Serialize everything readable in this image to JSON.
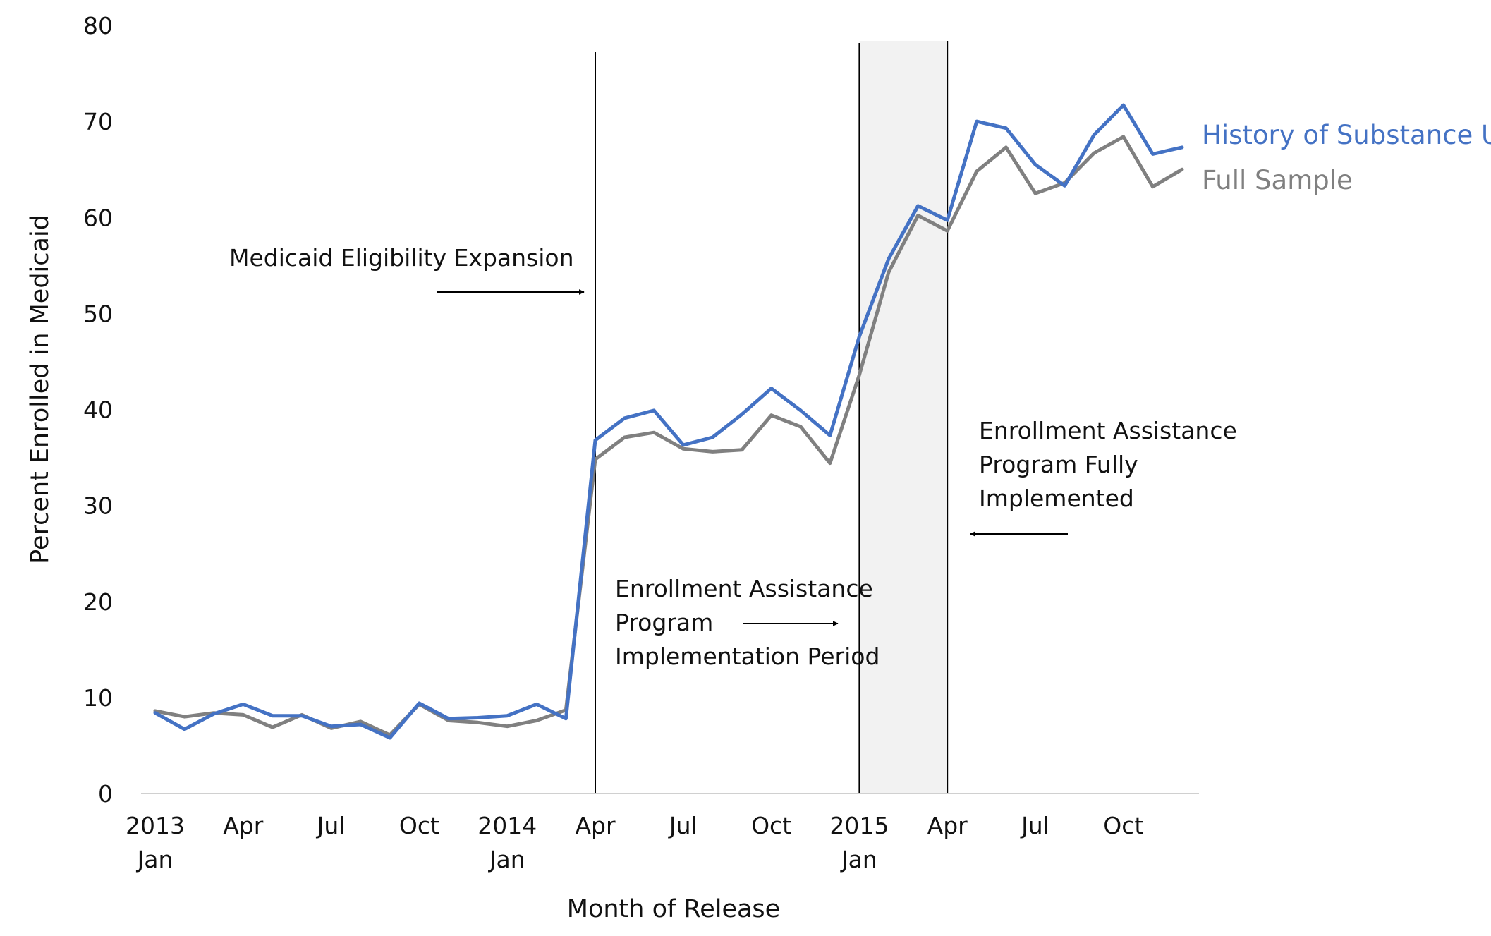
{
  "chart_data": {
    "type": "line",
    "xlabel": "Month of Release",
    "ylabel": "Percent Enrolled in Medicaid",
    "ylim": [
      0,
      80
    ],
    "yticks": [
      0,
      10,
      20,
      30,
      40,
      50,
      60,
      70,
      80
    ],
    "grid": false,
    "legend_placement": "right, at line ends",
    "x": [
      "2013-01",
      "2013-02",
      "2013-03",
      "2013-04",
      "2013-05",
      "2013-06",
      "2013-07",
      "2013-08",
      "2013-09",
      "2013-10",
      "2013-11",
      "2013-12",
      "2014-01",
      "2014-02",
      "2014-03",
      "2014-04",
      "2014-05",
      "2014-06",
      "2014-07",
      "2014-08",
      "2014-09",
      "2014-10",
      "2014-11",
      "2014-12",
      "2015-01",
      "2015-02",
      "2015-03",
      "2015-04",
      "2015-05",
      "2015-06",
      "2015-07",
      "2015-08",
      "2015-09",
      "2015-10",
      "2015-11",
      "2015-12"
    ],
    "xtick_labels": [
      {
        "month": "2013-01",
        "line1": "2013",
        "line2": "Jan"
      },
      {
        "month": "2013-04",
        "line1": "Apr",
        "line2": ""
      },
      {
        "month": "2013-07",
        "line1": "Jul",
        "line2": ""
      },
      {
        "month": "2013-10",
        "line1": "Oct",
        "line2": ""
      },
      {
        "month": "2014-01",
        "line1": "2014",
        "line2": "Jan"
      },
      {
        "month": "2014-04",
        "line1": "Apr",
        "line2": ""
      },
      {
        "month": "2014-07",
        "line1": "Jul",
        "line2": ""
      },
      {
        "month": "2014-10",
        "line1": "Oct",
        "line2": ""
      },
      {
        "month": "2015-01",
        "line1": "2015",
        "line2": "Jan"
      },
      {
        "month": "2015-04",
        "line1": "Apr",
        "line2": ""
      },
      {
        "month": "2015-07",
        "line1": "Jul",
        "line2": ""
      },
      {
        "month": "2015-10",
        "line1": "Oct",
        "line2": ""
      }
    ],
    "series": [
      {
        "name": "History of Substance Use",
        "color": "#4472c4",
        "values": [
          8.4,
          6.7,
          8.3,
          9.3,
          8.1,
          8.1,
          7.0,
          7.2,
          5.8,
          9.4,
          7.8,
          7.9,
          8.1,
          9.3,
          7.8,
          36.8,
          39.1,
          39.9,
          36.3,
          37.1,
          39.5,
          42.2,
          39.9,
          37.3,
          47.6,
          55.7,
          61.2,
          59.7,
          70.0,
          69.3,
          65.5,
          63.3,
          68.6,
          71.7,
          66.6,
          67.3
        ]
      },
      {
        "name": "Full Sample",
        "color": "#808080",
        "values": [
          8.6,
          8.0,
          8.4,
          8.2,
          6.9,
          8.2,
          6.8,
          7.5,
          6.1,
          9.3,
          7.6,
          7.4,
          7.0,
          7.6,
          8.7,
          34.8,
          37.1,
          37.6,
          35.9,
          35.6,
          35.8,
          39.4,
          38.2,
          34.4,
          43.6,
          54.3,
          60.2,
          58.6,
          64.8,
          67.3,
          62.5,
          63.6,
          66.7,
          68.4,
          63.2,
          65.0
        ]
      }
    ],
    "annotations": {
      "vlines": [
        "2014-04",
        "2015-01",
        "2015-04"
      ],
      "shaded_band": {
        "from": "2015-01",
        "to": "2015-04",
        "color": "#f2f2f2"
      },
      "expansion": {
        "lines": [
          "Medicaid Eligibility Expansion"
        ],
        "arrow": "right"
      },
      "implementation": {
        "lines": [
          "Enrollment Assistance",
          "Program",
          "Implementation Period"
        ],
        "arrow": "right"
      },
      "fully": {
        "lines": [
          "Enrollment Assistance",
          "Program Fully",
          "Implemented"
        ],
        "arrow": "left"
      }
    }
  }
}
